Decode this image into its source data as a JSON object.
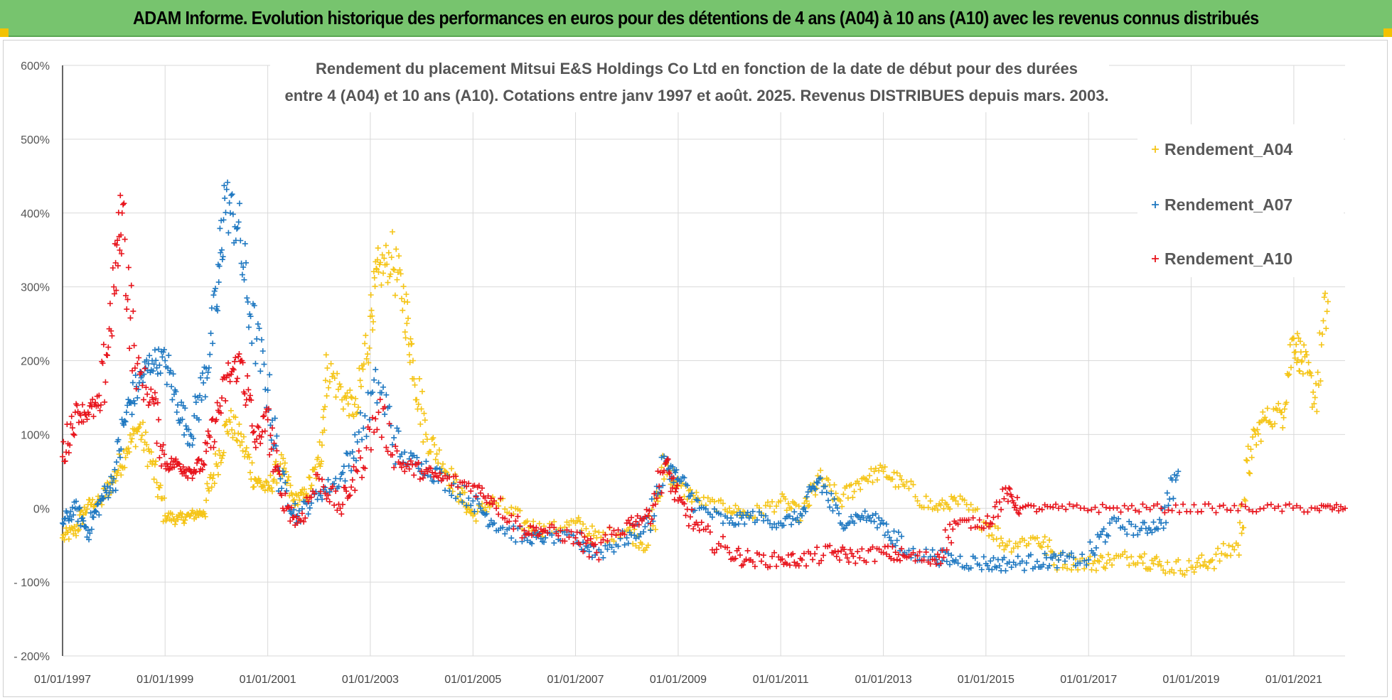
{
  "banner": {
    "title": "ADAM Informe. Evolution historique des performances en euros pour des détentions de 4 ans (A04) à 10 ans (A10) avec les revenus connus distribués"
  },
  "colors": {
    "banner_bg": "#77c46e",
    "corner_accent": "#f2c200",
    "series_A04": "#f5c518",
    "series_A07": "#1f78c1",
    "series_A10": "#e8141c"
  },
  "chart_data": {
    "type": "scatter",
    "title_lines": [
      "Rendement du placement Mitsui E&S Holdings Co Ltd en fonction de la date de début pour des durées",
      "entre 4 (A04) et 10 ans (A10). Cotations entre janv 1997 et août. 2025. Revenus DISTRIBUES depuis mars. 2003."
    ],
    "xlabel": "",
    "ylabel": "",
    "y_ticks": [
      "600%",
      "500%",
      "400%",
      "300%",
      "200%",
      "100%",
      "0%",
      "- 100%",
      "- 200%"
    ],
    "ylim": [
      -200,
      600
    ],
    "x_ticks": [
      "01/01/1997",
      "01/01/1999",
      "01/01/2001",
      "01/01/2003",
      "01/01/2005",
      "01/01/2007",
      "01/01/2009",
      "01/01/2011",
      "01/01/2013",
      "01/01/2015",
      "01/01/2017",
      "01/01/2019",
      "01/01/2021"
    ],
    "xlim": [
      "1997-01-01",
      "2022-01-01"
    ],
    "grid": true,
    "legend_position": "top-right",
    "marker": "+",
    "series": [
      {
        "name": "Rendement_A04",
        "color": "#f5c518",
        "points": [
          [
            "1997-01-01",
            -40
          ],
          [
            "1997-04-01",
            -30
          ],
          [
            "1997-07-01",
            5
          ],
          [
            "1997-10-01",
            10
          ],
          [
            "1998-01-01",
            40
          ],
          [
            "1998-04-01",
            80
          ],
          [
            "1998-07-01",
            110
          ],
          [
            "1998-10-01",
            60
          ],
          [
            "1999-01-01",
            -10
          ],
          [
            "1999-04-01",
            -15
          ],
          [
            "1999-07-01",
            -10
          ],
          [
            "1999-10-01",
            -5
          ],
          [
            "2000-01-01",
            60
          ],
          [
            "2000-04-01",
            120
          ],
          [
            "2000-07-01",
            90
          ],
          [
            "2000-10-01",
            40
          ],
          [
            "2001-01-01",
            25
          ],
          [
            "2001-04-01",
            60
          ],
          [
            "2001-07-01",
            10
          ],
          [
            "2001-10-01",
            20
          ],
          [
            "2002-01-01",
            60
          ],
          [
            "2002-03-01",
            190
          ],
          [
            "2002-07-01",
            150
          ],
          [
            "2002-10-01",
            130
          ],
          [
            "2003-01-01",
            260
          ],
          [
            "2003-03-01",
            320
          ],
          [
            "2003-06-01",
            340
          ],
          [
            "2003-09-01",
            280
          ],
          [
            "2003-11-01",
            200
          ],
          [
            "2004-02-01",
            100
          ],
          [
            "2004-06-01",
            60
          ],
          [
            "2004-10-01",
            20
          ],
          [
            "2005-01-01",
            -10
          ],
          [
            "2005-06-01",
            10
          ],
          [
            "2006-01-01",
            -20
          ],
          [
            "2006-06-01",
            -30
          ],
          [
            "2007-01-01",
            -20
          ],
          [
            "2007-06-01",
            -40
          ],
          [
            "2008-01-01",
            -30
          ],
          [
            "2008-06-01",
            -50
          ],
          [
            "2008-10-01",
            60
          ],
          [
            "2009-01-01",
            30
          ],
          [
            "2009-06-01",
            10
          ],
          [
            "2010-01-01",
            0
          ],
          [
            "2010-06-01",
            -10
          ],
          [
            "2011-01-01",
            10
          ],
          [
            "2011-06-01",
            -10
          ],
          [
            "2011-10-01",
            40
          ],
          [
            "2012-03-01",
            10
          ],
          [
            "2012-08-01",
            40
          ],
          [
            "2013-01-01",
            50
          ],
          [
            "2013-06-01",
            30
          ],
          [
            "2014-01-01",
            0
          ],
          [
            "2014-06-01",
            10
          ],
          [
            "2015-01-01",
            -20
          ],
          [
            "2015-06-01",
            -50
          ],
          [
            "2016-01-01",
            -40
          ],
          [
            "2016-06-01",
            -70
          ],
          [
            "2017-01-01",
            -75
          ],
          [
            "2017-06-01",
            -70
          ],
          [
            "2018-01-01",
            -65
          ],
          [
            "2018-06-01",
            -78
          ],
          [
            "2019-01-01",
            -80
          ],
          [
            "2019-06-01",
            -70
          ],
          [
            "2019-12-01",
            -50
          ],
          [
            "2020-03-01",
            80
          ],
          [
            "2020-06-01",
            120
          ],
          [
            "2020-10-01",
            130
          ],
          [
            "2021-01-01",
            230
          ],
          [
            "2021-03-01",
            200
          ],
          [
            "2021-06-01",
            150
          ],
          [
            "2021-09-01",
            280
          ]
        ]
      },
      {
        "name": "Rendement_A07",
        "color": "#1f78c1",
        "points": [
          [
            "1997-01-01",
            -20
          ],
          [
            "1997-04-01",
            0
          ],
          [
            "1997-07-01",
            -30
          ],
          [
            "1997-10-01",
            10
          ],
          [
            "1998-01-01",
            40
          ],
          [
            "1998-04-01",
            130
          ],
          [
            "1998-07-01",
            170
          ],
          [
            "1998-10-01",
            200
          ],
          [
            "1999-01-01",
            200
          ],
          [
            "1999-04-01",
            140
          ],
          [
            "1999-07-01",
            100
          ],
          [
            "1999-10-01",
            170
          ],
          [
            "2000-01-01",
            270
          ],
          [
            "2000-03-01",
            420
          ],
          [
            "2000-06-01",
            380
          ],
          [
            "2000-09-01",
            260
          ],
          [
            "2001-01-01",
            160
          ],
          [
            "2001-04-01",
            40
          ],
          [
            "2001-08-01",
            -10
          ],
          [
            "2002-01-01",
            20
          ],
          [
            "2002-06-01",
            40
          ],
          [
            "2002-10-01",
            90
          ],
          [
            "2003-03-01",
            170
          ],
          [
            "2003-08-01",
            70
          ],
          [
            "2004-01-01",
            60
          ],
          [
            "2004-06-01",
            40
          ],
          [
            "2005-01-01",
            10
          ],
          [
            "2005-06-01",
            -20
          ],
          [
            "2006-01-01",
            -40
          ],
          [
            "2006-06-01",
            -40
          ],
          [
            "2007-01-01",
            -40
          ],
          [
            "2007-06-01",
            -60
          ],
          [
            "2008-01-01",
            -40
          ],
          [
            "2008-06-01",
            -20
          ],
          [
            "2008-10-01",
            60
          ],
          [
            "2009-01-01",
            40
          ],
          [
            "2009-06-01",
            0
          ],
          [
            "2010-01-01",
            -20
          ],
          [
            "2010-06-01",
            -10
          ],
          [
            "2011-01-01",
            -20
          ],
          [
            "2011-06-01",
            -10
          ],
          [
            "2011-10-01",
            40
          ],
          [
            "2012-03-01",
            -20
          ],
          [
            "2012-08-01",
            -10
          ],
          [
            "2013-01-01",
            -20
          ],
          [
            "2013-06-01",
            -60
          ],
          [
            "2014-01-01",
            -65
          ],
          [
            "2014-06-01",
            -70
          ],
          [
            "2015-01-01",
            -75
          ],
          [
            "2015-06-01",
            -75
          ],
          [
            "2016-01-01",
            -72
          ],
          [
            "2016-06-01",
            -70
          ],
          [
            "2017-01-01",
            -70
          ],
          [
            "2017-06-01",
            -20
          ],
          [
            "2018-01-01",
            -30
          ],
          [
            "2018-06-01",
            -20
          ],
          [
            "2018-10-01",
            50
          ]
        ]
      },
      {
        "name": "Rendement_A10",
        "color": "#e8141c",
        "points": [
          [
            "1997-01-01",
            70
          ],
          [
            "1997-04-01",
            130
          ],
          [
            "1997-07-01",
            130
          ],
          [
            "1997-10-01",
            140
          ],
          [
            "1998-01-01",
            300
          ],
          [
            "1998-03-01",
            400
          ],
          [
            "1998-06-01",
            190
          ],
          [
            "1998-10-01",
            150
          ],
          [
            "1999-01-01",
            60
          ],
          [
            "1999-04-01",
            60
          ],
          [
            "1999-07-01",
            50
          ],
          [
            "1999-10-01",
            60
          ],
          [
            "2000-01-01",
            120
          ],
          [
            "2000-04-01",
            180
          ],
          [
            "2000-07-01",
            200
          ],
          [
            "2000-10-01",
            90
          ],
          [
            "2001-01-01",
            120
          ],
          [
            "2001-04-01",
            20
          ],
          [
            "2001-08-01",
            -20
          ],
          [
            "2002-01-01",
            40
          ],
          [
            "2002-06-01",
            0
          ],
          [
            "2002-10-01",
            50
          ],
          [
            "2003-03-01",
            130
          ],
          [
            "2003-08-01",
            60
          ],
          [
            "2004-01-01",
            50
          ],
          [
            "2004-06-01",
            40
          ],
          [
            "2005-01-01",
            30
          ],
          [
            "2005-06-01",
            10
          ],
          [
            "2006-01-01",
            -30
          ],
          [
            "2006-06-01",
            -30
          ],
          [
            "2007-01-01",
            -40
          ],
          [
            "2007-06-01",
            -60
          ],
          [
            "2008-01-01",
            -20
          ],
          [
            "2008-06-01",
            -10
          ],
          [
            "2008-10-01",
            60
          ],
          [
            "2009-01-01",
            10
          ],
          [
            "2009-06-01",
            -30
          ],
          [
            "2010-01-01",
            -60
          ],
          [
            "2010-06-01",
            -70
          ],
          [
            "2011-01-01",
            -70
          ],
          [
            "2011-06-01",
            -70
          ],
          [
            "2012-01-01",
            -60
          ],
          [
            "2012-06-01",
            -65
          ],
          [
            "2013-01-01",
            -60
          ],
          [
            "2013-06-01",
            -65
          ],
          [
            "2014-01-01",
            -70
          ],
          [
            "2014-06-01",
            -20
          ],
          [
            "2015-01-01",
            -20
          ],
          [
            "2015-06-01",
            20
          ],
          [
            "2015-09-01",
            0
          ],
          [
            "2016-06-01",
            0
          ],
          [
            "2017-06-01",
            0
          ],
          [
            "2018-06-01",
            0
          ],
          [
            "2019-06-01",
            0
          ],
          [
            "2020-06-01",
            0
          ],
          [
            "2021-06-01",
            0
          ],
          [
            "2022-01-01",
            0
          ]
        ]
      }
    ]
  }
}
